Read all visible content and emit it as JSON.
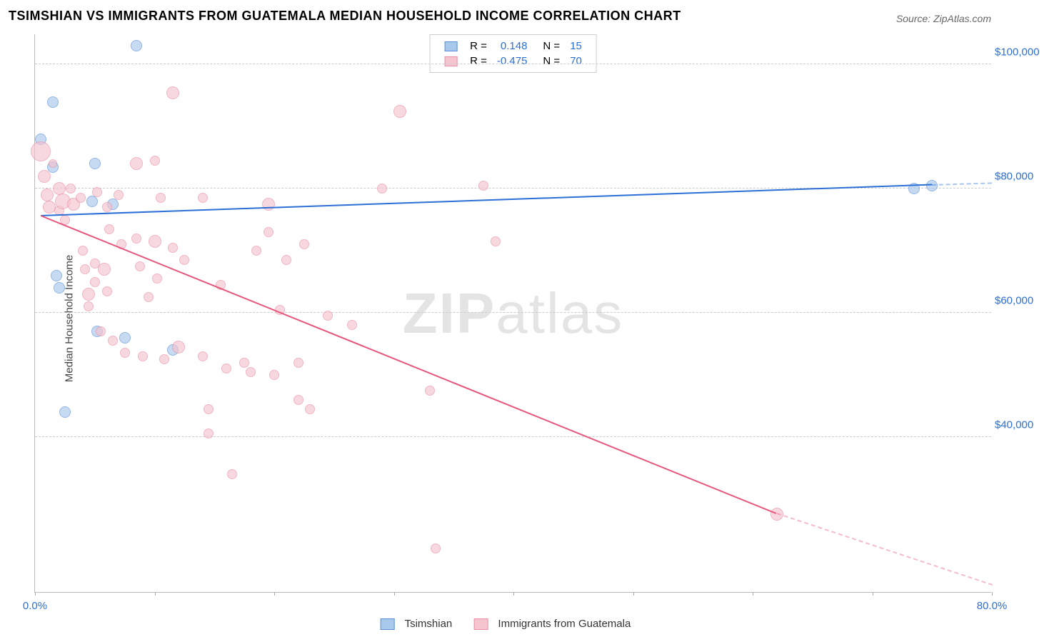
{
  "title": "TSIMSHIAN VS IMMIGRANTS FROM GUATEMALA MEDIAN HOUSEHOLD INCOME CORRELATION CHART",
  "source": "Source: ZipAtlas.com",
  "ylabel": "Median Household Income",
  "watermark": "ZIPatlas",
  "colors": {
    "series_a_fill": "#a8c8ec",
    "series_a_stroke": "#5b8fd6",
    "series_a_line": "#2c6fd6",
    "series_b_fill": "#f5c4cf",
    "series_b_stroke": "#e98fa5",
    "series_b_line": "#e6577c",
    "grid": "#cccccc",
    "axis": "#bbbbbb",
    "text_blue": "#2c6fd6",
    "text_dark": "#333333",
    "background": "#ffffff"
  },
  "xaxis": {
    "min": 0,
    "max": 80,
    "ticks": [
      0,
      10,
      20,
      30,
      40,
      50,
      60,
      70,
      80
    ],
    "labels": [
      {
        "pos": 0,
        "text": "0.0%"
      },
      {
        "pos": 80,
        "text": "80.0%"
      }
    ]
  },
  "yaxis": {
    "min": 15000,
    "max": 105000,
    "gridlines": [
      40000,
      60000,
      80000,
      100000
    ],
    "tick_labels": [
      {
        "v": 40000,
        "text": "$40,000"
      },
      {
        "v": 60000,
        "text": "$60,000"
      },
      {
        "v": 80000,
        "text": "$80,000"
      },
      {
        "v": 100000,
        "text": "$100,000"
      }
    ]
  },
  "series": [
    {
      "key": "tsimshian",
      "label": "Tsimshian",
      "R": "0.148",
      "N": "15",
      "fill": "#a8c8ec",
      "stroke": "#5b8fd6",
      "line_color": "#2c6fd6",
      "trend": {
        "x1": 0.5,
        "y1": 75500,
        "x2": 75,
        "y2": 80500,
        "extrap_x2": 80,
        "extrap_y2": 80800
      },
      "points": [
        {
          "x": 0.5,
          "y": 88000,
          "r": 8
        },
        {
          "x": 1.5,
          "y": 94000,
          "r": 8
        },
        {
          "x": 1.5,
          "y": 83500,
          "r": 8
        },
        {
          "x": 1.8,
          "y": 66000,
          "r": 8
        },
        {
          "x": 2.0,
          "y": 64000,
          "r": 8
        },
        {
          "x": 2.5,
          "y": 44000,
          "r": 8
        },
        {
          "x": 4.8,
          "y": 78000,
          "r": 8
        },
        {
          "x": 5.0,
          "y": 84000,
          "r": 8
        },
        {
          "x": 5.2,
          "y": 57000,
          "r": 8
        },
        {
          "x": 6.5,
          "y": 77500,
          "r": 8
        },
        {
          "x": 7.5,
          "y": 56000,
          "r": 8
        },
        {
          "x": 8.5,
          "y": 103000,
          "r": 8
        },
        {
          "x": 11.5,
          "y": 54000,
          "r": 8
        },
        {
          "x": 73.5,
          "y": 80000,
          "r": 8
        },
        {
          "x": 75.0,
          "y": 80500,
          "r": 8
        }
      ]
    },
    {
      "key": "guatemala",
      "label": "Immigrants from Guatemala",
      "R": "-0.475",
      "N": "70",
      "fill": "#f5c4cf",
      "stroke": "#e98fa5",
      "line_color": "#e6577c",
      "trend": {
        "x1": 0.5,
        "y1": 75500,
        "x2": 62,
        "y2": 27500,
        "extrap_x2": 80,
        "extrap_y2": 16000
      },
      "points": [
        {
          "x": 0.5,
          "y": 86000,
          "r": 14
        },
        {
          "x": 0.8,
          "y": 82000,
          "r": 9
        },
        {
          "x": 1.0,
          "y": 79000,
          "r": 9
        },
        {
          "x": 1.2,
          "y": 77000,
          "r": 9
        },
        {
          "x": 1.5,
          "y": 84000,
          "r": 6
        },
        {
          "x": 2.0,
          "y": 80000,
          "r": 9
        },
        {
          "x": 2.0,
          "y": 76500,
          "r": 7
        },
        {
          "x": 2.3,
          "y": 78000,
          "r": 11
        },
        {
          "x": 2.5,
          "y": 75000,
          "r": 7
        },
        {
          "x": 3.0,
          "y": 80000,
          "r": 7
        },
        {
          "x": 3.2,
          "y": 77500,
          "r": 9
        },
        {
          "x": 3.8,
          "y": 78500,
          "r": 7
        },
        {
          "x": 4.0,
          "y": 70000,
          "r": 7
        },
        {
          "x": 4.2,
          "y": 67000,
          "r": 7
        },
        {
          "x": 4.5,
          "y": 63000,
          "r": 9
        },
        {
          "x": 4.5,
          "y": 61000,
          "r": 7
        },
        {
          "x": 5.0,
          "y": 68000,
          "r": 7
        },
        {
          "x": 5.0,
          "y": 65000,
          "r": 7
        },
        {
          "x": 5.2,
          "y": 79500,
          "r": 7
        },
        {
          "x": 5.5,
          "y": 57000,
          "r": 7
        },
        {
          "x": 5.8,
          "y": 67000,
          "r": 9
        },
        {
          "x": 6.0,
          "y": 77000,
          "r": 7
        },
        {
          "x": 6.0,
          "y": 63500,
          "r": 7
        },
        {
          "x": 6.2,
          "y": 73500,
          "r": 7
        },
        {
          "x": 6.5,
          "y": 55500,
          "r": 7
        },
        {
          "x": 7.0,
          "y": 79000,
          "r": 7
        },
        {
          "x": 7.2,
          "y": 71000,
          "r": 7
        },
        {
          "x": 7.5,
          "y": 53500,
          "r": 7
        },
        {
          "x": 8.5,
          "y": 84000,
          "r": 9
        },
        {
          "x": 8.5,
          "y": 72000,
          "r": 7
        },
        {
          "x": 8.8,
          "y": 67500,
          "r": 7
        },
        {
          "x": 9.0,
          "y": 53000,
          "r": 7
        },
        {
          "x": 9.5,
          "y": 62500,
          "r": 7
        },
        {
          "x": 10.0,
          "y": 84500,
          "r": 7
        },
        {
          "x": 10.0,
          "y": 71500,
          "r": 9
        },
        {
          "x": 10.2,
          "y": 65500,
          "r": 7
        },
        {
          "x": 10.5,
          "y": 78500,
          "r": 7
        },
        {
          "x": 10.8,
          "y": 52500,
          "r": 7
        },
        {
          "x": 11.5,
          "y": 95500,
          "r": 9
        },
        {
          "x": 11.5,
          "y": 70500,
          "r": 7
        },
        {
          "x": 12.0,
          "y": 54500,
          "r": 9
        },
        {
          "x": 12.5,
          "y": 68500,
          "r": 7
        },
        {
          "x": 14.0,
          "y": 78500,
          "r": 7
        },
        {
          "x": 14.0,
          "y": 53000,
          "r": 7
        },
        {
          "x": 14.5,
          "y": 44500,
          "r": 7
        },
        {
          "x": 14.5,
          "y": 40500,
          "r": 7
        },
        {
          "x": 15.5,
          "y": 64500,
          "r": 7
        },
        {
          "x": 16.0,
          "y": 51000,
          "r": 7
        },
        {
          "x": 16.5,
          "y": 34000,
          "r": 7
        },
        {
          "x": 17.5,
          "y": 52000,
          "r": 7
        },
        {
          "x": 18.0,
          "y": 50500,
          "r": 7
        },
        {
          "x": 18.5,
          "y": 70000,
          "r": 7
        },
        {
          "x": 19.5,
          "y": 77500,
          "r": 9
        },
        {
          "x": 19.5,
          "y": 73000,
          "r": 7
        },
        {
          "x": 20.0,
          "y": 50000,
          "r": 7
        },
        {
          "x": 20.5,
          "y": 60500,
          "r": 7
        },
        {
          "x": 21.0,
          "y": 68500,
          "r": 7
        },
        {
          "x": 22.0,
          "y": 52000,
          "r": 7
        },
        {
          "x": 22.0,
          "y": 46000,
          "r": 7
        },
        {
          "x": 22.5,
          "y": 71000,
          "r": 7
        },
        {
          "x": 23.0,
          "y": 44500,
          "r": 7
        },
        {
          "x": 24.5,
          "y": 59500,
          "r": 7
        },
        {
          "x": 26.5,
          "y": 58000,
          "r": 7
        },
        {
          "x": 29.0,
          "y": 80000,
          "r": 7
        },
        {
          "x": 30.5,
          "y": 92500,
          "r": 9
        },
        {
          "x": 33.0,
          "y": 47500,
          "r": 7
        },
        {
          "x": 33.5,
          "y": 22000,
          "r": 7
        },
        {
          "x": 37.5,
          "y": 80500,
          "r": 7
        },
        {
          "x": 38.5,
          "y": 71500,
          "r": 7
        },
        {
          "x": 62.0,
          "y": 27500,
          "r": 9
        }
      ]
    }
  ]
}
